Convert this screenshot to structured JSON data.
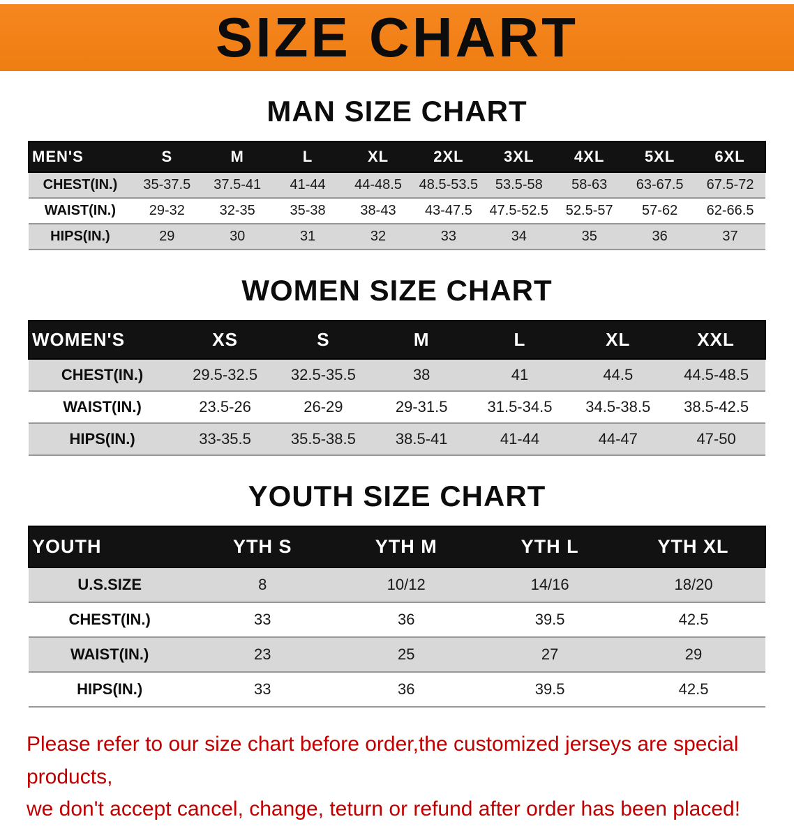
{
  "banner": {
    "title": "SIZE CHART"
  },
  "colors": {
    "banner_bg": "#f6861f",
    "banner_bg_dark": "#ee7d12",
    "footer_text": "#c00000",
    "table_header_bg": "#121212",
    "row_shade": "#d8d8d8"
  },
  "sections": [
    {
      "heading": "MAN SIZE CHART",
      "table": {
        "columns": [
          "MEN'S",
          "S",
          "M",
          "L",
          "XL",
          "2XL",
          "3XL",
          "4XL",
          "5XL",
          "6XL"
        ],
        "rows": [
          [
            "CHEST(IN.)",
            "35-37.5",
            "37.5-41",
            "41-44",
            "44-48.5",
            "48.5-53.5",
            "53.5-58",
            "58-63",
            "63-67.5",
            "67.5-72"
          ],
          [
            "WAIST(IN.)",
            "29-32",
            "32-35",
            "35-38",
            "38-43",
            "43-47.5",
            "47.5-52.5",
            "52.5-57",
            "57-62",
            "62-66.5"
          ],
          [
            "HIPS(IN.)",
            "29",
            "30",
            "31",
            "32",
            "33",
            "34",
            "35",
            "36",
            "37"
          ]
        ]
      }
    },
    {
      "heading": "WOMEN SIZE CHART",
      "table": {
        "columns": [
          "WOMEN'S",
          "XS",
          "S",
          "M",
          "L",
          "XL",
          "XXL"
        ],
        "rows": [
          [
            "CHEST(IN.)",
            "29.5-32.5",
            "32.5-35.5",
            "38",
            "41",
            "44.5",
            "44.5-48.5"
          ],
          [
            "WAIST(IN.)",
            "23.5-26",
            "26-29",
            "29-31.5",
            "31.5-34.5",
            "34.5-38.5",
            "38.5-42.5"
          ],
          [
            "HIPS(IN.)",
            "33-35.5",
            "35.5-38.5",
            "38.5-41",
            "41-44",
            "44-47",
            "47-50"
          ]
        ]
      }
    },
    {
      "heading": "YOUTH SIZE CHART",
      "table": {
        "columns": [
          "YOUTH",
          "YTH S",
          "YTH M",
          "YTH L",
          "YTH XL"
        ],
        "rows": [
          [
            "U.S.SIZE",
            "8",
            "10/12",
            "14/16",
            "18/20"
          ],
          [
            "CHEST(IN.)",
            "33",
            "36",
            "39.5",
            "42.5"
          ],
          [
            "WAIST(IN.)",
            "23",
            "25",
            "27",
            "29"
          ],
          [
            "HIPS(IN.)",
            "33",
            "36",
            "39.5",
            "42.5"
          ]
        ]
      }
    }
  ],
  "footer": {
    "line1": "Please refer to our size chart before order,the customized jerseys are special products,",
    "line2": "we don't accept cancel, change, teturn or refund after order has been placed!"
  }
}
